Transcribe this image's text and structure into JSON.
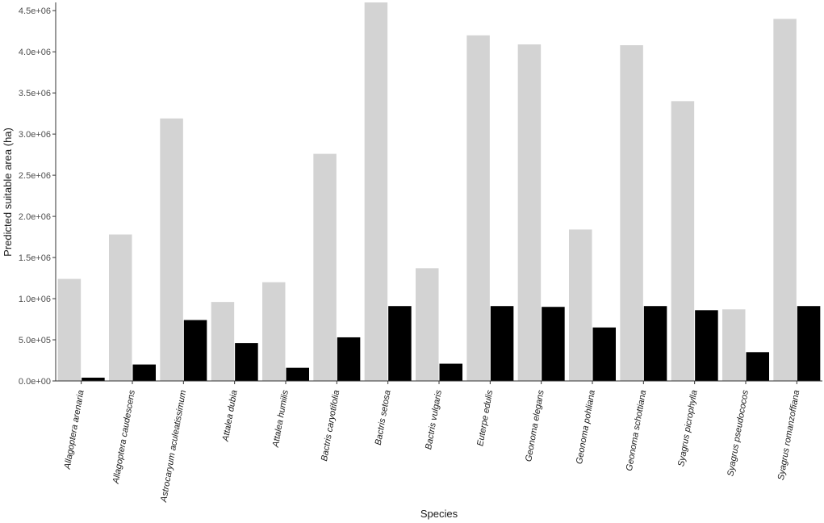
{
  "chart_data": {
    "type": "bar",
    "title": "",
    "xlabel": "Species",
    "ylabel": "Predicted suitable area (ha)",
    "ylim": [
      0,
      4600000
    ],
    "yticks": [
      0,
      500000,
      1000000,
      1500000,
      2000000,
      2500000,
      3000000,
      3500000,
      4000000,
      4500000
    ],
    "ytick_labels": [
      "0.0e+00",
      "5.0e+05",
      "1.0e+06",
      "1.5e+06",
      "2.0e+06",
      "2.5e+06",
      "3.0e+06",
      "3.5e+06",
      "4.0e+06",
      "4.5e+06"
    ],
    "grid": false,
    "legend": "none",
    "categories": [
      "Allagoptera arenaria",
      "Allagoptera caudescens",
      "Astrocaryum aculeatissimum",
      "Attalea dubia",
      "Attalea humilis",
      "Bactris caryotifolia",
      "Bactris setosa",
      "Bactris vulgaris",
      "Euterpe edulis",
      "Geonoma elegans",
      "Geonoma pohliana",
      "Geonoma schottiana",
      "Syagrus picrophylla",
      "Syagrus pseudococos",
      "Syagrus romanzoffiana"
    ],
    "series": [
      {
        "color": "#d3d3d3",
        "values": [
          1240000,
          1780000,
          3190000,
          960000,
          1200000,
          2760000,
          4600000,
          1370000,
          4200000,
          4090000,
          1840000,
          4080000,
          3400000,
          870000,
          4400000
        ]
      },
      {
        "color": "#000000",
        "values": [
          40000,
          200000,
          740000,
          460000,
          160000,
          530000,
          910000,
          210000,
          910000,
          900000,
          650000,
          910000,
          860000,
          350000,
          910000
        ]
      }
    ]
  }
}
